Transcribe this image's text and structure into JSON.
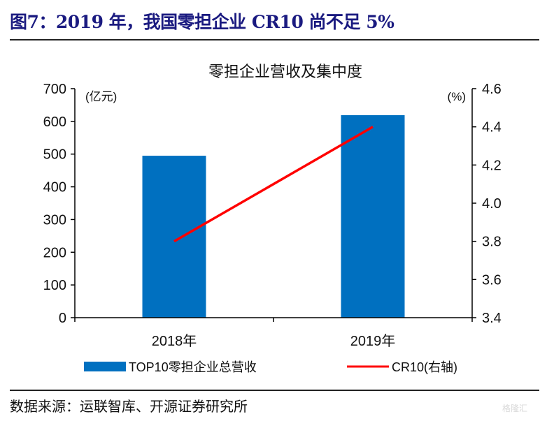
{
  "figure_title": "图7：2019 年，我国零担企业 CR10 尚不足 5%",
  "source": "数据来源：运联智库、开源证券研究所",
  "watermark": "格隆汇",
  "colors": {
    "bar": "#0070C0",
    "line": "#FF0000",
    "title": "#1a1a80"
  },
  "chart_data": {
    "type": "bar+line",
    "title": "零担企业营收及集中度",
    "categories": [
      "2018年",
      "2019年"
    ],
    "series": [
      {
        "name": "TOP10零担企业总营收",
        "type": "bar",
        "axis": "left",
        "values": [
          495,
          619
        ]
      },
      {
        "name": "CR10(右轴)",
        "type": "line",
        "axis": "right",
        "values": [
          3.8,
          4.4
        ]
      }
    ],
    "left_axis": {
      "label": "(亿元)",
      "ylim": [
        0,
        700
      ],
      "ticks": [
        "0",
        "100",
        "200",
        "300",
        "400",
        "500",
        "600",
        "700"
      ]
    },
    "right_axis": {
      "label": "(%)",
      "ylim": [
        3.4,
        4.6
      ],
      "ticks": [
        "3.4",
        "3.6",
        "3.8",
        "4.0",
        "4.2",
        "4.4",
        "4.6"
      ]
    },
    "grid": false,
    "legend": "bottom"
  }
}
